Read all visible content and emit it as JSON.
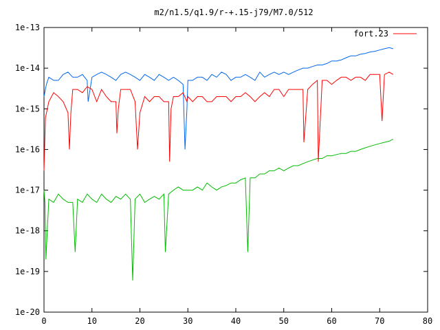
{
  "chart_data": {
    "type": "line",
    "title": "m2/n1.5/q1.9/r-+.15-j79/M7.0/512",
    "xlabel": "",
    "ylabel": "",
    "xlim": [
      0,
      80
    ],
    "ylim": [
      1e-20,
      1e-13
    ],
    "yscale": "log",
    "grid": false,
    "legend_position": "top-right",
    "x_ticks": [
      "0",
      "10",
      "20",
      "30",
      "40",
      "50",
      "60",
      "70",
      "80"
    ],
    "x_tick_values": [
      0,
      10,
      20,
      30,
      40,
      50,
      60,
      70,
      80
    ],
    "y_ticks": [
      "1e-20",
      "1e-19",
      "1e-18",
      "1e-17",
      "1e-16",
      "1e-15",
      "1e-14",
      "1e-13"
    ],
    "y_tick_values": [
      1e-20,
      1e-19,
      1e-18,
      1e-17,
      1e-16,
      1e-15,
      1e-14,
      1e-13
    ],
    "series": [
      {
        "name": "fort.23",
        "color": "#ff0000",
        "x": [
          0,
          0.3,
          1,
          2,
          3,
          4,
          5,
          5.3,
          5.6,
          6,
          7,
          8,
          9,
          10,
          11,
          12,
          13,
          14,
          15,
          15.2,
          15.5,
          16,
          17,
          18,
          19,
          19.5,
          20,
          21,
          22,
          23,
          24,
          25,
          26,
          26.2,
          26.5,
          27,
          28,
          29,
          29.8,
          30,
          31,
          32,
          33,
          34,
          35,
          36,
          37,
          38,
          39,
          40,
          41,
          42,
          43,
          44,
          45,
          46,
          47,
          48,
          49,
          50,
          51,
          52,
          53,
          54,
          54.2,
          55,
          56,
          57,
          57.2,
          58,
          59,
          60,
          61,
          62,
          63,
          64,
          65,
          66,
          67,
          68,
          69,
          70,
          70.5,
          71,
          72,
          72.8
        ],
        "y": [
          3e-17,
          6e-16,
          1.5e-15,
          2.5e-15,
          2e-15,
          1.5e-15,
          8e-16,
          1e-16,
          8e-16,
          3e-15,
          3e-15,
          2.5e-15,
          3.5e-15,
          3e-15,
          1.5e-15,
          3e-15,
          2e-15,
          1.5e-15,
          1.5e-15,
          2.5e-16,
          1e-15,
          3e-15,
          3e-15,
          3e-15,
          1.5e-15,
          1e-16,
          8e-16,
          2e-15,
          1.5e-15,
          2e-15,
          2e-15,
          1.5e-15,
          1.5e-15,
          5e-17,
          1e-15,
          2e-15,
          2e-15,
          2.5e-15,
          1.5e-15,
          2e-15,
          1.5e-15,
          2e-15,
          2e-15,
          1.5e-15,
          1.5e-15,
          2e-15,
          2e-15,
          2e-15,
          1.5e-15,
          2e-15,
          2e-15,
          2.5e-15,
          2e-15,
          1.5e-15,
          2e-15,
          2.5e-15,
          2e-15,
          3e-15,
          3e-15,
          2e-15,
          3e-15,
          3e-15,
          3e-15,
          3e-15,
          1.5e-16,
          3e-15,
          4e-15,
          5e-15,
          5e-17,
          5e-15,
          5e-15,
          4e-15,
          5e-15,
          6e-15,
          6e-15,
          5e-15,
          6e-15,
          6e-15,
          5e-15,
          7e-15,
          7e-15,
          7e-15,
          5e-16,
          7e-15,
          8e-15,
          7e-15
        ]
      },
      {
        "name": "",
        "color": "#0066ee",
        "x": [
          0,
          0.5,
          1,
          2,
          3,
          4,
          5,
          6,
          7,
          8,
          9,
          9.2,
          10,
          11,
          12,
          13,
          14,
          15,
          16,
          17,
          18,
          19,
          20,
          21,
          22,
          23,
          24,
          25,
          26,
          27,
          28,
          29,
          29.4,
          29.8,
          30,
          31,
          32,
          33,
          34,
          35,
          36,
          37,
          38,
          39,
          40,
          41,
          42,
          43,
          44,
          45,
          46,
          47,
          48,
          49,
          50,
          51,
          52,
          53,
          54,
          55,
          56,
          57,
          58,
          59,
          60,
          61,
          62,
          63,
          64,
          65,
          66,
          67,
          68,
          69,
          70,
          71,
          72,
          72.8
        ],
        "y": [
          2e-15,
          4e-15,
          6e-15,
          5e-15,
          5e-15,
          7e-15,
          8e-15,
          6e-15,
          6e-15,
          7e-15,
          5e-15,
          1.5e-15,
          6e-15,
          7e-15,
          8e-15,
          7e-15,
          6e-15,
          5e-15,
          7e-15,
          8e-15,
          7e-15,
          6e-15,
          5e-15,
          7e-15,
          6e-15,
          5e-15,
          7e-15,
          6e-15,
          5e-15,
          6e-15,
          5e-15,
          4e-15,
          1e-16,
          1e-15,
          5e-15,
          5e-15,
          6e-15,
          6e-15,
          5e-15,
          7e-15,
          6e-15,
          8e-15,
          7e-15,
          5e-15,
          6e-15,
          6e-15,
          7e-15,
          6e-15,
          5e-15,
          8e-15,
          6e-15,
          7e-15,
          8e-15,
          7e-15,
          8e-15,
          7e-15,
          8e-15,
          9e-15,
          1e-14,
          1e-14,
          1.1e-14,
          1.2e-14,
          1.2e-14,
          1.3e-14,
          1.5e-14,
          1.5e-14,
          1.6e-14,
          1.8e-14,
          2e-14,
          2e-14,
          2.2e-14,
          2.3e-14,
          2.5e-14,
          2.6e-14,
          2.8e-14,
          3e-14,
          3.2e-14,
          3e-14
        ]
      },
      {
        "name": "",
        "color": "#00bb00",
        "x": [
          0,
          0.2,
          0.4,
          1,
          2,
          3,
          4,
          5,
          6,
          6.5,
          7,
          8,
          9,
          10,
          11,
          12,
          13,
          14,
          15,
          16,
          17,
          18,
          18.5,
          19,
          20,
          21,
          22,
          23,
          24,
          25,
          25.3,
          26,
          27,
          28,
          29,
          30,
          31,
          32,
          33,
          34,
          35,
          36,
          37,
          38,
          39,
          40,
          41,
          42,
          42.5,
          43,
          44,
          45,
          46,
          47,
          48,
          49,
          50,
          51,
          52,
          53,
          54,
          55,
          56,
          57,
          58,
          59,
          60,
          61,
          62,
          63,
          64,
          65,
          66,
          67,
          68,
          69,
          70,
          71,
          72,
          72.8
        ],
        "y": [
          1e-17,
          5e-18,
          2e-19,
          6e-18,
          5e-18,
          8e-18,
          6e-18,
          5e-18,
          5e-18,
          3e-19,
          6e-18,
          5e-18,
          8e-18,
          6e-18,
          5e-18,
          8e-18,
          6e-18,
          5e-18,
          7e-18,
          6e-18,
          8e-18,
          6e-18,
          6e-20,
          6e-18,
          8e-18,
          5e-18,
          6e-18,
          7e-18,
          6e-18,
          8e-18,
          3e-19,
          8e-18,
          1e-17,
          1.2e-17,
          1e-17,
          1e-17,
          1e-17,
          1.2e-17,
          1e-17,
          1.5e-17,
          1.2e-17,
          1e-17,
          1.2e-17,
          1.3e-17,
          1.5e-17,
          1.5e-17,
          1.8e-17,
          2e-17,
          3e-19,
          2e-17,
          2e-17,
          2.5e-17,
          2.5e-17,
          3e-17,
          3e-17,
          3.5e-17,
          3e-17,
          3.5e-17,
          4e-17,
          4e-17,
          4.5e-17,
          5e-17,
          5.5e-17,
          6e-17,
          6e-17,
          7e-17,
          7e-17,
          7.5e-17,
          8e-17,
          8e-17,
          9e-17,
          9e-17,
          1e-16,
          1.1e-16,
          1.2e-16,
          1.3e-16,
          1.4e-16,
          1.5e-16,
          1.6e-16,
          1.8e-16
        ]
      }
    ]
  }
}
